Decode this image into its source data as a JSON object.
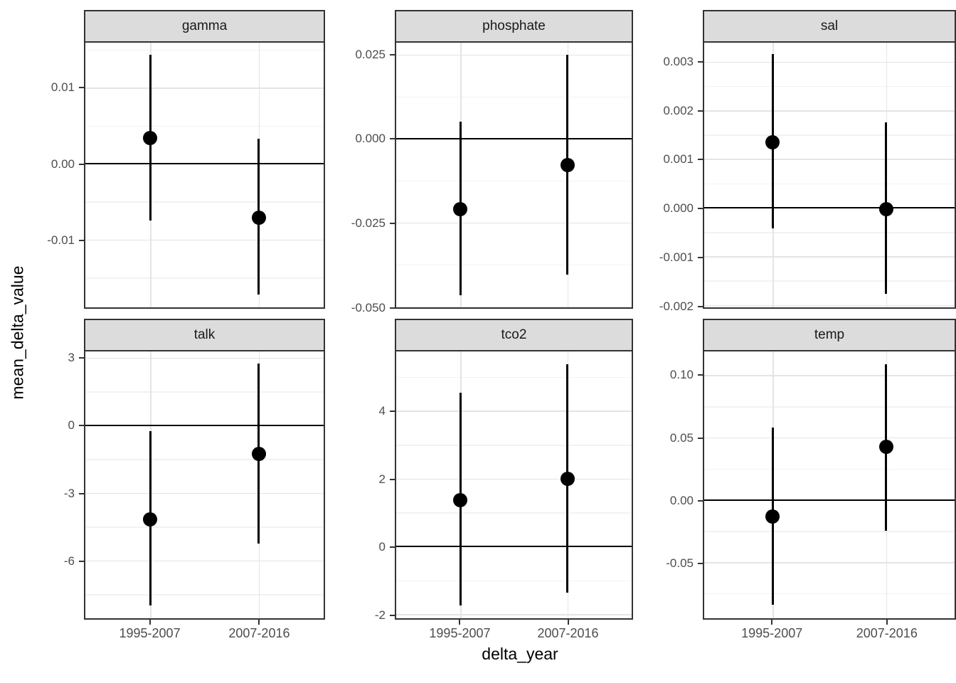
{
  "figure": {
    "y_axis_title": "mean_delta_value",
    "x_axis_title": "delta_year"
  },
  "chart_data": {
    "type": "scatter",
    "subtype": "pointrange-errorbar-facets",
    "facet_layout": {
      "rows": 2,
      "cols": 3,
      "free_y_scales": true
    },
    "categories": [
      "1995-2007",
      "2007-2016"
    ],
    "category_positions_pct": [
      27.3,
      72.7
    ],
    "zero_reference_line": 0,
    "grid": "major-and-minor",
    "legend": "none",
    "facets": [
      {
        "label": "gamma",
        "ticks": [
          0.01,
          0,
          -0.01
        ],
        "tick_labels": [
          "0.01",
          "0.00",
          "-0.01"
        ],
        "ylim": [
          -0.0189,
          0.0159
        ],
        "points": [
          {
            "x": "1995-2007",
            "mean": 0.0034,
            "ymin": -0.0075,
            "ymax": 0.0143
          },
          {
            "x": "2007-2016",
            "mean": -0.0071,
            "ymin": -0.0172,
            "ymax": 0.0033
          }
        ]
      },
      {
        "label": "phosphate",
        "ticks": [
          0.025,
          0,
          -0.025,
          -0.05
        ],
        "tick_labels": [
          "0.025",
          "0.000",
          "-0.025",
          "-0.050"
        ],
        "ylim": [
          -0.0503,
          0.0285
        ],
        "points": [
          {
            "x": "1995-2007",
            "mean": -0.021,
            "ymin": -0.0466,
            "ymax": 0.005
          },
          {
            "x": "2007-2016",
            "mean": -0.008,
            "ymin": -0.0406,
            "ymax": 0.0248
          }
        ]
      },
      {
        "label": "sal",
        "ticks": [
          0.003,
          0.002,
          0.001,
          0,
          -0.001,
          -0.002
        ],
        "tick_labels": [
          "0.003",
          "0.002",
          "0.001",
          "0.000",
          "-0.001",
          "-0.002"
        ],
        "ylim": [
          -0.00205,
          0.00339
        ],
        "points": [
          {
            "x": "1995-2007",
            "mean": 0.00135,
            "ymin": -0.00042,
            "ymax": 0.00315
          },
          {
            "x": "2007-2016",
            "mean": -3e-05,
            "ymin": -0.00177,
            "ymax": 0.00175
          }
        ]
      },
      {
        "label": "talk",
        "ticks": [
          3,
          0,
          -3,
          -6
        ],
        "tick_labels": [
          "3",
          "0",
          "-3",
          "-6"
        ],
        "ylim": [
          -8.56,
          3.28
        ],
        "points": [
          {
            "x": "1995-2007",
            "mean": -4.16,
            "ymin": -8.0,
            "ymax": -0.26
          },
          {
            "x": "2007-2016",
            "mean": -1.26,
            "ymin": -5.26,
            "ymax": 2.74
          }
        ]
      },
      {
        "label": "tco2",
        "ticks": [
          4,
          2,
          0,
          -2
        ],
        "tick_labels": [
          "4",
          "2",
          "0",
          "-2"
        ],
        "ylim": [
          -2.12,
          5.75
        ],
        "points": [
          {
            "x": "1995-2007",
            "mean": 1.37,
            "ymin": -1.75,
            "ymax": 4.53
          },
          {
            "x": "2007-2016",
            "mean": 2.0,
            "ymin": -1.37,
            "ymax": 5.37
          }
        ]
      },
      {
        "label": "temp",
        "ticks": [
          0.1,
          0.05,
          0,
          -0.05
        ],
        "tick_labels": [
          "0.10",
          "0.05",
          "0.00",
          "-0.05"
        ],
        "ylim": [
          -0.095,
          0.119
        ],
        "points": [
          {
            "x": "1995-2007",
            "mean": -0.0132,
            "ymin": -0.0843,
            "ymax": 0.0578
          },
          {
            "x": "2007-2016",
            "mean": 0.0426,
            "ymin": -0.0246,
            "ymax": 0.1089
          }
        ]
      }
    ],
    "colors": {
      "point": "#000000",
      "errorbar": "#000000",
      "zero_line": "#000000",
      "strip_background": "#dcdcdc",
      "panel_border": "#333333",
      "grid_major": "#e4e4e4",
      "grid_minor": "#f2f2f2",
      "tick_text": "#4d4d4d",
      "strip_text": "#1a1a1a"
    }
  }
}
